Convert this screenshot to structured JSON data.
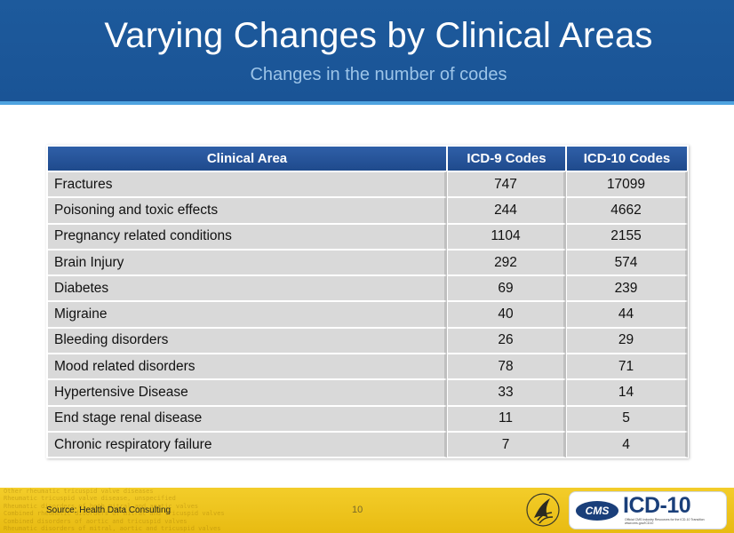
{
  "slide": {
    "title": "Varying Changes by Clinical Areas",
    "subtitle": "Changes in the number of codes"
  },
  "table": {
    "headers": [
      "Clinical Area",
      "ICD-9 Codes",
      "ICD-10 Codes"
    ],
    "rows": [
      [
        "Fractures",
        "747",
        "17099"
      ],
      [
        "Poisoning and toxic effects",
        "244",
        "4662"
      ],
      [
        "Pregnancy related conditions",
        "1104",
        "2155"
      ],
      [
        "Brain Injury",
        "292",
        "574"
      ],
      [
        "Diabetes",
        "69",
        "239"
      ],
      [
        "Migraine",
        "40",
        "44"
      ],
      [
        "Bleeding disorders",
        "26",
        "29"
      ],
      [
        "Mood related disorders",
        "78",
        "71"
      ],
      [
        "Hypertensive Disease",
        "33",
        "14"
      ],
      [
        "End stage renal disease",
        "11",
        "5"
      ],
      [
        "Chronic respiratory failure",
        "7",
        "4"
      ]
    ]
  },
  "footer": {
    "source": "Source:  Health Data Consulting",
    "page_number": "10",
    "cms_label": "CMS",
    "logo_text": "ICD-10",
    "logo_tagline": "Official CMS Industry Resources for the ICD-10 Transition www.cms.gov/ICD10",
    "background_code_lines": [
      "Other rheumatic tricuspid valve diseases",
      "Rheumatic tricuspid valve disease, unspecified",
      "Rheumatic disorders of both mitral and aortic valves",
      "Combined rheumatic disorders of mitral and tricuspid valves",
      "Combined disorders of aortic and tricuspid valves",
      "Rheumatic disorders of mitral, aortic and tricuspid valves"
    ]
  },
  "colors": {
    "header_blue": "#1d5a9c",
    "header_rule": "#4ea3e0",
    "subtitle": "#9cc4e8",
    "table_header": "#1f4a8c",
    "table_cell": "#d9d9d9",
    "footer_yellow": "#f3cd2a",
    "logo_blue": "#1a3f7a"
  },
  "icons": {
    "hhs_logo": "hhs-eagle-logo",
    "cms_logo": "cms-icd10-logo"
  }
}
